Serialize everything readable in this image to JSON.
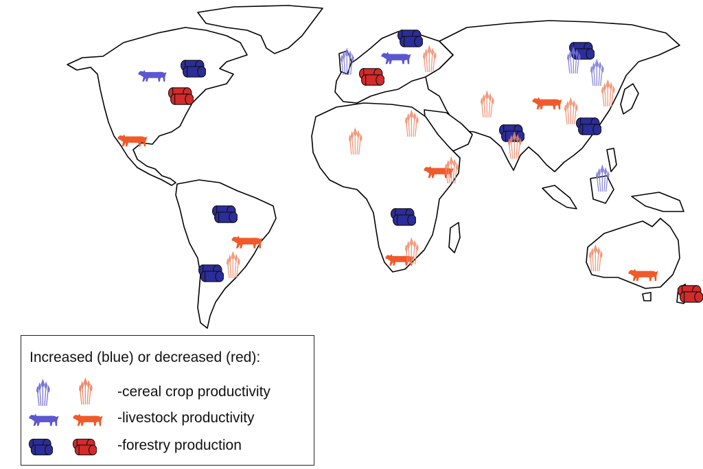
{
  "legend": {
    "title": "Increased (blue) or decreased (red):",
    "items": [
      {
        "symbol": "cereal-icon",
        "label": "-cereal crop productivity"
      },
      {
        "symbol": "cow-icon",
        "label": "-livestock productivity"
      },
      {
        "symbol": "log-icon",
        "label": "-forestry production"
      }
    ]
  },
  "colors": {
    "increase_cereal": "#7a76d6",
    "increase_solid": "#2b2d9b",
    "decrease_cereal": "#f08a6a",
    "decrease_livestock": "#f05a2a",
    "decrease_forestry": "#d42a2a",
    "coastline": "#000000"
  },
  "markers": [
    {
      "symbol": "cow",
      "change": "increase",
      "region": "North America"
    },
    {
      "symbol": "log",
      "change": "increase",
      "region": "Eastern Canada"
    },
    {
      "symbol": "log",
      "change": "decrease",
      "region": "Eastern United States"
    },
    {
      "symbol": "cow",
      "change": "decrease",
      "region": "Mexico"
    },
    {
      "symbol": "log",
      "change": "increase",
      "region": "Amazon"
    },
    {
      "symbol": "cow",
      "change": "decrease",
      "region": "Eastern Brazil"
    },
    {
      "symbol": "cereal",
      "change": "decrease",
      "region": "Southern Brazil"
    },
    {
      "symbol": "log",
      "change": "increase",
      "region": "Argentina"
    },
    {
      "symbol": "cereal",
      "change": "increase",
      "region": "British Isles"
    },
    {
      "symbol": "log",
      "change": "increase",
      "region": "Scandinavia"
    },
    {
      "symbol": "cow",
      "change": "increase",
      "region": "Baltic"
    },
    {
      "symbol": "log",
      "change": "decrease",
      "region": "Central Europe"
    },
    {
      "symbol": "cereal",
      "change": "decrease",
      "region": "Russia"
    },
    {
      "symbol": "cereal",
      "change": "decrease",
      "region": "Central Asia"
    },
    {
      "symbol": "cereal",
      "change": "decrease",
      "region": "West Africa"
    },
    {
      "symbol": "cereal",
      "change": "decrease",
      "region": "Northeast Africa"
    },
    {
      "symbol": "cow",
      "change": "decrease",
      "region": "East Africa"
    },
    {
      "symbol": "cereal",
      "change": "decrease",
      "region": "Horn of Africa"
    },
    {
      "symbol": "log",
      "change": "increase",
      "region": "Central Africa"
    },
    {
      "symbol": "cow",
      "change": "decrease",
      "region": "Southern Africa"
    },
    {
      "symbol": "cereal",
      "change": "decrease",
      "region": "Southern Africa"
    },
    {
      "symbol": "log",
      "change": "increase",
      "region": "India"
    },
    {
      "symbol": "cereal",
      "change": "decrease",
      "region": "India"
    },
    {
      "symbol": "log",
      "change": "increase",
      "region": "Siberia"
    },
    {
      "symbol": "cereal",
      "change": "increase",
      "region": "Siberia"
    },
    {
      "symbol": "cereal",
      "change": "increase",
      "region": "Northeast China"
    },
    {
      "symbol": "cereal",
      "change": "decrease",
      "region": "Korea"
    },
    {
      "symbol": "cow",
      "change": "decrease",
      "region": "Central China"
    },
    {
      "symbol": "cereal",
      "change": "decrease",
      "region": "China"
    },
    {
      "symbol": "log",
      "change": "increase",
      "region": "Southeast China"
    },
    {
      "symbol": "cereal",
      "change": "increase",
      "region": "Southeast Asia"
    },
    {
      "symbol": "cereal",
      "change": "decrease",
      "region": "Western Australia"
    },
    {
      "symbol": "cow",
      "change": "decrease",
      "region": "Southeast Australia"
    },
    {
      "symbol": "log",
      "change": "decrease",
      "region": "New Zealand"
    }
  ]
}
